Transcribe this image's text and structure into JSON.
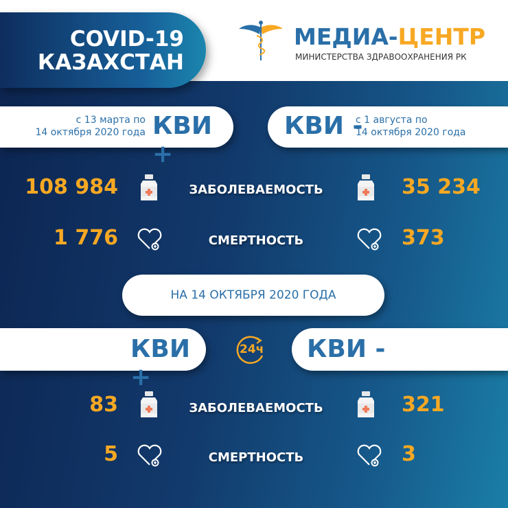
{
  "header": {
    "title_line1": "COVID-19",
    "title_line2": "КАЗАХСТАН",
    "logo_title_part1": "МЕДИА-",
    "logo_title_part2": "ЦЕНТР",
    "logo_subtitle": "МИНИСТЕРСТВА ЗДРАВООХРАНЕНИЯ РК"
  },
  "colors": {
    "accent": "#f7a823",
    "brand_blue": "#2a6fa8",
    "background": "#123a6c"
  },
  "cumulative": {
    "left": {
      "label": "КВИ +",
      "period_line1": "с 13 марта по",
      "period_line2": "14 октября 2020 года",
      "incidence": "108 984",
      "deaths": "1 776"
    },
    "right": {
      "label": "КВИ -",
      "period_line1": "с 1 августа  по",
      "period_line2": "14 октября 2020 года",
      "incidence": "35 234",
      "deaths": "373"
    }
  },
  "labels": {
    "incidence": "ЗАБОЛЕВАЕМОСТЬ",
    "mortality": "СМЕРТНОСТЬ"
  },
  "daily": {
    "date_label": "НА 14 ОКТЯБРЯ  2020 ГОДА",
    "badge": "24ч",
    "left": {
      "label": "КВИ +",
      "incidence": "83",
      "deaths": "5"
    },
    "right": {
      "label": "КВИ -",
      "incidence": "321",
      "deaths": "3"
    }
  },
  "icons": {
    "bottle": "medicine-bottle-icon",
    "heart": "heart-plus-icon",
    "logo": "caduceus-icon",
    "clock": "24h-icon"
  }
}
